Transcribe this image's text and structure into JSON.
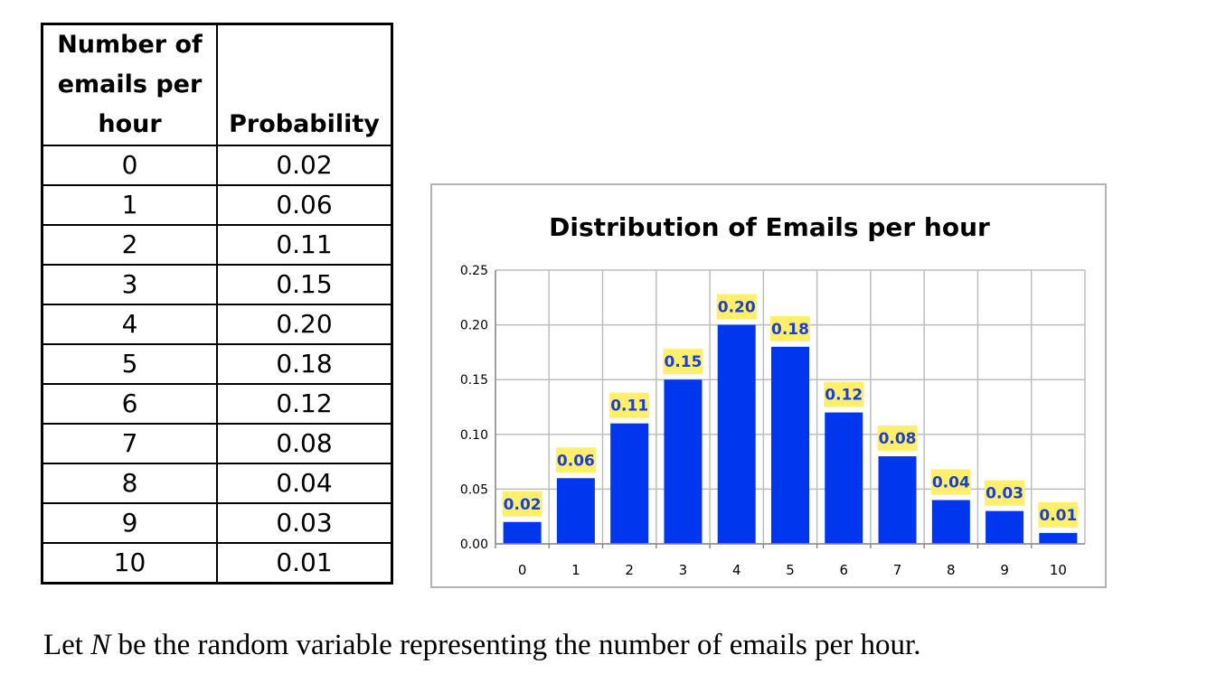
{
  "table": {
    "headers": [
      "Number of emails per hour",
      "Probability"
    ],
    "header_lines": [
      [
        "Number of",
        "emails per",
        "hour"
      ],
      [
        "Probability"
      ]
    ],
    "rows": [
      [
        "0",
        "0.02"
      ],
      [
        "1",
        "0.06"
      ],
      [
        "2",
        "0.11"
      ],
      [
        "3",
        "0.15"
      ],
      [
        "4",
        "0.20"
      ],
      [
        "5",
        "0.18"
      ],
      [
        "6",
        "0.12"
      ],
      [
        "7",
        "0.08"
      ],
      [
        "8",
        "0.04"
      ],
      [
        "9",
        "0.03"
      ],
      [
        "10",
        "0.01"
      ]
    ]
  },
  "chart_data": {
    "type": "bar",
    "title": "Distribution of Emails per hour",
    "xlabel": "",
    "ylabel": "",
    "categories": [
      "0",
      "1",
      "2",
      "3",
      "4",
      "5",
      "6",
      "7",
      "8",
      "9",
      "10"
    ],
    "values": [
      0.02,
      0.06,
      0.11,
      0.15,
      0.2,
      0.18,
      0.12,
      0.08,
      0.04,
      0.03,
      0.01
    ],
    "data_labels": [
      "0.02",
      "0.06",
      "0.11",
      "0.15",
      "0.20",
      "0.18",
      "0.12",
      "0.08",
      "0.04",
      "0.03",
      "0.01"
    ],
    "ylim": [
      0,
      0.25
    ],
    "yticks": [
      "0.00",
      "0.05",
      "0.10",
      "0.15",
      "0.20",
      "0.25"
    ],
    "grid": true,
    "bar_color": "#0037ee",
    "label_bg_color": "#ffef6b",
    "label_text_color": "#1a3fd6"
  },
  "caption": {
    "pre": "Let ",
    "var": "N",
    "post": " be the random variable representing the number of emails per hour."
  }
}
